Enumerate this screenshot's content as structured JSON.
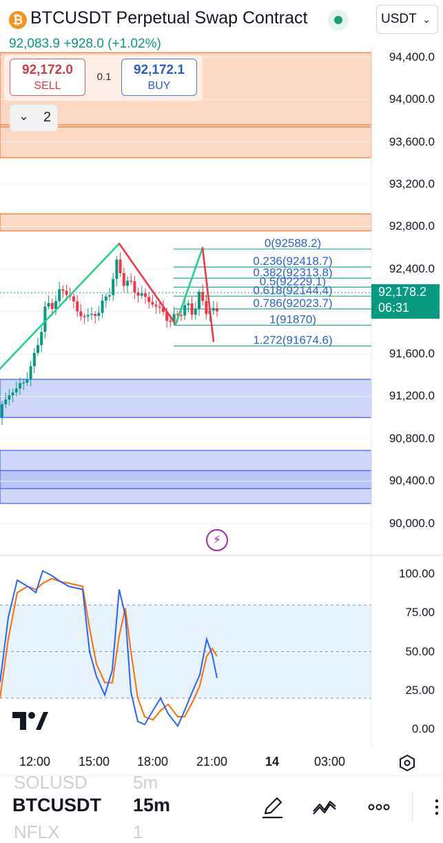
{
  "header": {
    "logo_glyph": "₿",
    "title": "BTCUSDT Perpetual Swap Contract",
    "currency": "USDT",
    "price": "92,083.9",
    "change": "+928.0",
    "change_pct": "(+1.02%)",
    "status_color": "#1a9e7a"
  },
  "trade": {
    "sell_price": "92,172.0",
    "sell_label": "SELL",
    "spread": "0.1",
    "buy_price": "92,172.1",
    "buy_label": "BUY",
    "collapse_count": "2"
  },
  "price_axis": {
    "labels": [
      "94,400.0",
      "94,000.0",
      "93,600.0",
      "93,200.0",
      "92,800.0",
      "92,400.0",
      "91,600.0",
      "91,200.0",
      "90,800.0",
      "90,400.0",
      "90,000.0"
    ],
    "current_price": "92,178.2",
    "countdown": "06:31"
  },
  "fibonacci": [
    {
      "ratio": "0",
      "price": "92588.2"
    },
    {
      "ratio": "0.236",
      "price": "92418.7"
    },
    {
      "ratio": "0.382",
      "price": "92313.8"
    },
    {
      "ratio": "0.5",
      "price": "92229.1"
    },
    {
      "ratio": "0.618",
      "price": "92144.4"
    },
    {
      "ratio": "0.786",
      "price": "92023.7"
    },
    {
      "ratio": "1",
      "price": "91870"
    },
    {
      "ratio": "1.272",
      "price": "91674.6"
    }
  ],
  "zones": {
    "supply": [
      [
        93450,
        94440
      ],
      [
        92760,
        92920
      ]
    ],
    "demand": [
      [
        91000,
        91360
      ],
      [
        90190,
        90690
      ]
    ]
  },
  "oscillator": {
    "axis_labels": [
      "100.00",
      "75.00",
      "50.00",
      "25.00",
      "0.00"
    ],
    "upper_band": 80,
    "mid_band": 50,
    "lower_band": 20
  },
  "time_axis": [
    "12:00",
    "15:00",
    "18:00",
    "21:00",
    "14",
    "03:00"
  ],
  "bottom": {
    "ghost_symbol_top": "SOLUSD",
    "ghost_interval_top": "5m",
    "symbol": "BTCUSDT",
    "interval": "15m",
    "ghost_symbol_bottom": "NFLX",
    "ghost_interval_bottom": "1"
  },
  "colors": {
    "up": "#089981",
    "down": "#f23645",
    "supply_zone": "#fcd9c4",
    "demand_zone": "#cfd8fb",
    "fib": "#22ab94",
    "k_line": "#2962ff",
    "d_line": "#ff6d00",
    "accent": "#9c27b0"
  },
  "icons": [
    "bitcoin-logo",
    "chevron-down-icon",
    "lightning-icon",
    "tradingview-logo",
    "settings-icon",
    "pencil-icon",
    "chart-pattern-icon",
    "more-icon",
    "ellipsis-icon"
  ]
}
